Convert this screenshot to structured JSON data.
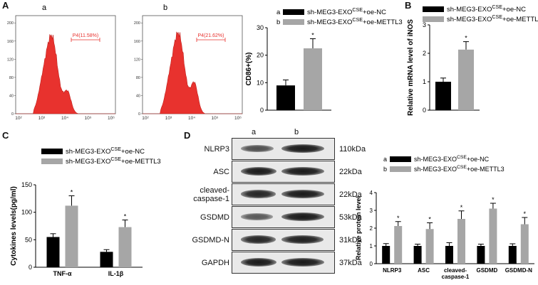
{
  "panels": {
    "A": "A",
    "B": "B",
    "C": "C",
    "D": "D"
  },
  "flow": [
    {
      "sublabel": "a",
      "gate": "P4(11.58%)"
    },
    {
      "sublabel": "b",
      "gate": "P4(21.62%)"
    }
  ],
  "flow_axis": {
    "y_ticks": [
      "0",
      "40",
      "80",
      "120",
      "160",
      "200"
    ],
    "x_ticks": [
      "10²",
      "10³",
      "10⁴",
      "10⁵",
      "10⁶"
    ]
  },
  "colors": {
    "control": "#000000",
    "treatment": "#a6a6a6",
    "histogram": "#e8322e"
  },
  "legend": {
    "nc_prefix": "sh-MEG3-EXO",
    "nc_sup": "CSE",
    "nc_suffix": "+oe-NC",
    "mettl3_prefix": "sh-MEG3-EXO",
    "mettl3_sup": "CSE",
    "mettl3_suffix": "+oe-METTL3",
    "a": "a",
    "b": "b",
    "star": "*"
  },
  "chart_data": [
    {
      "type": "bar",
      "panel": "A",
      "categories": [
        ""
      ],
      "series": [
        {
          "name": "sh-MEG3-EXO^CSE+oe-NC",
          "values": [
            9
          ],
          "errors": [
            2
          ]
        },
        {
          "name": "sh-MEG3-EXO^CSE+oe-METTL3",
          "values": [
            22.5
          ],
          "errors": [
            3.5
          ]
        }
      ],
      "ylabel": "CD86+(%)",
      "ylim": [
        0,
        30
      ],
      "yticks": [
        "0",
        "10",
        "20",
        "30"
      ]
    },
    {
      "type": "bar",
      "panel": "B",
      "categories": [
        ""
      ],
      "series": [
        {
          "name": "sh-MEG3-EXO^CSE+oe-NC",
          "values": [
            1.0
          ],
          "errors": [
            0.13
          ]
        },
        {
          "name": "sh-MEG3-EXO^CSE+oe-METTL3",
          "values": [
            2.13
          ],
          "errors": [
            0.28
          ]
        }
      ],
      "ylabel": "Relative mRNA level of iNOS",
      "ylim": [
        0,
        3
      ],
      "yticks": [
        "0",
        "1",
        "2",
        "3"
      ]
    },
    {
      "type": "bar",
      "panel": "C",
      "categories": [
        "TNF-α",
        "IL-1β"
      ],
      "series": [
        {
          "name": "sh-MEG3-EXO^CSE+oe-NC",
          "values": [
            55,
            28
          ],
          "errors": [
            6,
            4
          ]
        },
        {
          "name": "sh-MEG3-EXO^CSE+oe-METTL3",
          "values": [
            112,
            73
          ],
          "errors": [
            18,
            13
          ]
        }
      ],
      "ylabel": "Cytokines levels(pg/ml)",
      "ylim": [
        0,
        150
      ],
      "yticks": [
        "0",
        "50",
        "100",
        "150"
      ]
    },
    {
      "type": "bar",
      "panel": "D",
      "categories": [
        "NLRP3",
        "ASC",
        "cleaved-\ncaspase-1",
        "GSDMD",
        "GSDMD-N"
      ],
      "series": [
        {
          "name": "sh-MEG3-EXO^CSE+oe-NC",
          "values": [
            1.0,
            1.0,
            1.0,
            1.0,
            1.0
          ],
          "errors": [
            0.13,
            0.1,
            0.18,
            0.1,
            0.12
          ]
        },
        {
          "name": "sh-MEG3-EXO^CSE+oe-METTL3",
          "values": [
            2.12,
            1.95,
            2.52,
            3.1,
            2.22
          ],
          "errors": [
            0.25,
            0.35,
            0.45,
            0.3,
            0.38
          ]
        }
      ],
      "ylabel": "Relative protein level",
      "ylim": [
        0,
        4
      ],
      "yticks": [
        "0",
        "1",
        "2",
        "3",
        "4"
      ]
    }
  ],
  "blot": {
    "lane_a": "a",
    "lane_b": "b",
    "rows": [
      {
        "label": "NLRP3",
        "kda": "110kDa"
      },
      {
        "label": "ASC",
        "kda": "22kDa"
      },
      {
        "label": "cleaved-\ncaspase-1",
        "kda": "22kDa"
      },
      {
        "label": "GSDMD",
        "kda": "53kDa"
      },
      {
        "label": "GSDMD-N",
        "kda": "31kDa"
      },
      {
        "label": "GAPDH",
        "kda": "37kDa"
      }
    ]
  }
}
